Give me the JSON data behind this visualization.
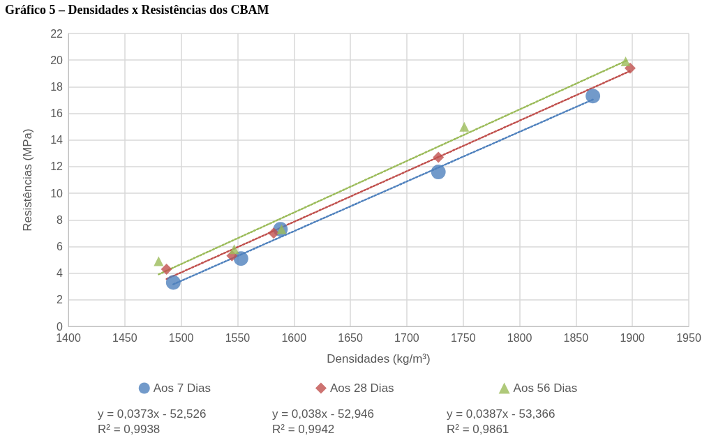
{
  "chart_data": {
    "type": "scatter",
    "title": "Gráfico 5 – Densidades x Resistências dos CBAM",
    "xlabel": "Densidades (kg/m³)",
    "ylabel": "Resistências (MPa)",
    "xlim": [
      1400,
      1950
    ],
    "xticks": [
      1400,
      1450,
      1500,
      1550,
      1600,
      1650,
      1700,
      1750,
      1800,
      1850,
      1900,
      1950
    ],
    "ylim": [
      0,
      22
    ],
    "yticks": [
      0,
      2,
      4,
      6,
      8,
      10,
      12,
      14,
      16,
      18,
      20,
      22
    ],
    "grid": true,
    "legend": "bottom",
    "series": [
      {
        "name": "Aos 7 Dias",
        "color": "#4f81bd",
        "marker": "circle",
        "x": [
          1493,
          1553,
          1588,
          1728,
          1865
        ],
        "values": [
          3.3,
          5.1,
          7.3,
          11.6,
          17.3
        ]
      },
      {
        "name": "Aos 28 Dias",
        "color": "#c0504d",
        "marker": "diamond",
        "x": [
          1487,
          1545,
          1582,
          1728,
          1898
        ],
        "values": [
          4.3,
          5.3,
          7.0,
          12.7,
          19.4
        ]
      },
      {
        "name": "Aos 56 Dias",
        "color": "#9bbb59",
        "marker": "triangle",
        "x": [
          1480,
          1547,
          1589,
          1751,
          1894
        ],
        "values": [
          4.9,
          5.8,
          7.3,
          15.0,
          19.9
        ]
      },
      {
        "type": "line",
        "color": "#4f81bd",
        "line_style": "dotted",
        "marker": "none",
        "x": [
          1493,
          1865
        ],
        "values": [
          3.16,
          17.04
        ]
      },
      {
        "type": "line",
        "color": "#c0504d",
        "line_style": "dotted",
        "marker": "none",
        "x": [
          1487,
          1898
        ],
        "values": [
          3.56,
          19.18
        ]
      },
      {
        "type": "line",
        "color": "#9bbb59",
        "line_style": "dotted",
        "marker": "none",
        "x": [
          1480,
          1895
        ],
        "values": [
          3.91,
          19.97
        ]
      }
    ],
    "annotations": [
      "y = 0,0373x - 52,526\nR² = 0,9938",
      "y = 0,038x - 52,946\nR² = 0,9942",
      "y = 0,0387x - 53,366\nR² = 0,9861"
    ]
  }
}
